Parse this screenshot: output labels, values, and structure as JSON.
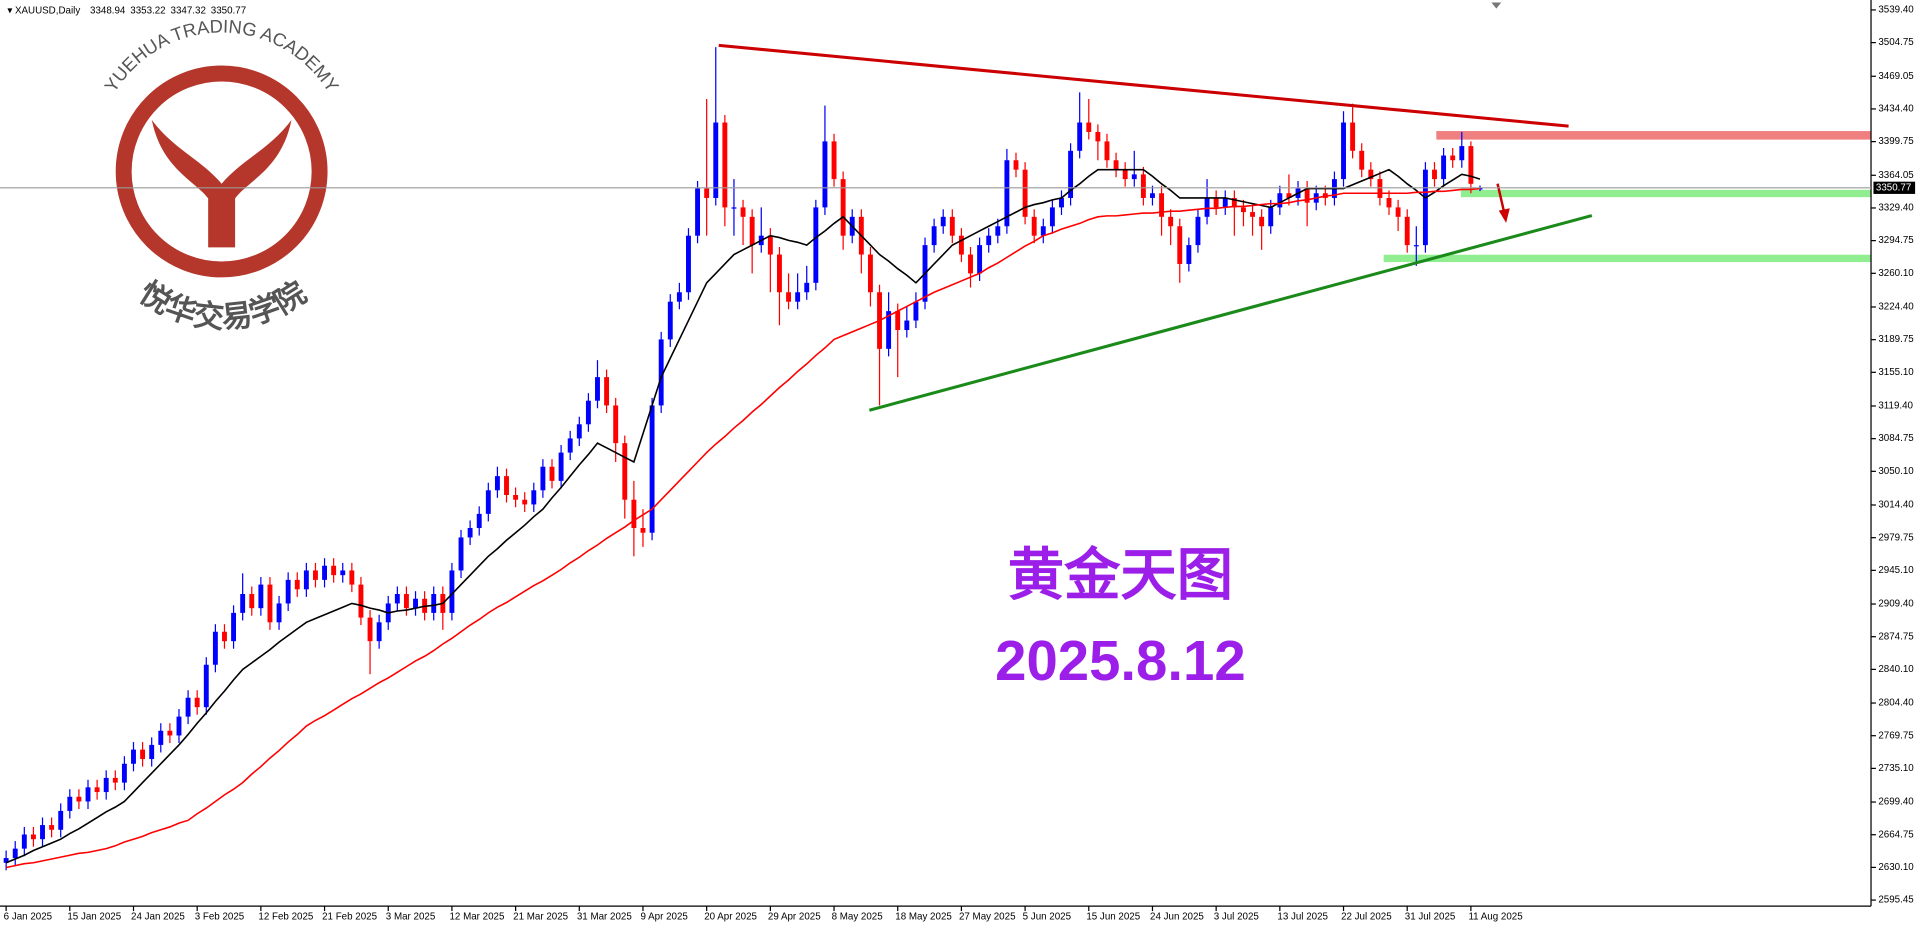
{
  "chart_data": {
    "type": "candlestick",
    "symbol": "XAUUSD,Daily",
    "title": "黄金天图",
    "subtitle": "2025.8.12",
    "watermark": {
      "text": "YUEHUA TRADING ACADEMY",
      "name": "悦华交易学院"
    },
    "up_color": "#0000ff",
    "down_color": "#ff0000",
    "categories": [
      "6 Jan 2025",
      null,
      null,
      null,
      null,
      null,
      null,
      "15 Jan 2025",
      null,
      null,
      null,
      null,
      null,
      null,
      "24 Jan 2025",
      null,
      null,
      null,
      null,
      null,
      null,
      "3 Feb 2025",
      null,
      null,
      null,
      null,
      null,
      null,
      "12 Feb 2025",
      null,
      null,
      null,
      null,
      null,
      null,
      "21 Feb 2025",
      null,
      null,
      null,
      null,
      null,
      null,
      "3 Mar 2025",
      null,
      null,
      null,
      null,
      null,
      null,
      "12 Mar 2025",
      null,
      null,
      null,
      null,
      null,
      null,
      "21 Mar 2025",
      null,
      null,
      null,
      null,
      null,
      null,
      "31 Mar 2025",
      null,
      null,
      null,
      null,
      null,
      null,
      "9 Apr 2025",
      null,
      null,
      null,
      null,
      null,
      null,
      "20 Apr 2025",
      null,
      null,
      null,
      null,
      null,
      null,
      "29 Apr 2025",
      null,
      null,
      null,
      null,
      null,
      null,
      "8 May 2025",
      null,
      null,
      null,
      null,
      null,
      null,
      "18 May 2025",
      null,
      null,
      null,
      null,
      null,
      null,
      "27 May 2025",
      null,
      null,
      null,
      null,
      null,
      null,
      "5 Jun 2025",
      null,
      null,
      null,
      null,
      null,
      null,
      "15 Jun 2025",
      null,
      null,
      null,
      null,
      null,
      null,
      "24 Jun 2025",
      null,
      null,
      null,
      null,
      null,
      null,
      "3 Jul 2025",
      null,
      null,
      null,
      null,
      null,
      null,
      "13 Jul 2025",
      null,
      null,
      null,
      null,
      null,
      null,
      "22 Jul 2025",
      null,
      null,
      null,
      null,
      null,
      null,
      "31 Jul 2025",
      null,
      null,
      null,
      null,
      null,
      null,
      "11 Aug 2025",
      null
    ],
    "open": [
      2635,
      2640,
      2650,
      2665,
      2660,
      2675,
      2670,
      2690,
      2705,
      2700,
      2715,
      2710,
      2725,
      2720,
      2740,
      2755,
      2745,
      2760,
      2775,
      2770,
      2790,
      2810,
      2800,
      2845,
      2880,
      2870,
      2900,
      2920,
      2905,
      2930,
      2890,
      2910,
      2935,
      2925,
      2945,
      2935,
      2950,
      2940,
      2945,
      2930,
      2895,
      2870,
      2890,
      2910,
      2920,
      2905,
      2915,
      2900,
      2920,
      2900,
      2945,
      2980,
      2990,
      3005,
      3030,
      3045,
      3025,
      3020,
      3015,
      3030,
      3055,
      3040,
      3070,
      3085,
      3100,
      3125,
      3150,
      3120,
      3080,
      3020,
      2990,
      2985,
      3120,
      3190,
      3230,
      3240,
      3300,
      3350,
      3340,
      3420,
      3330,
      3330,
      3320,
      3290,
      3300,
      3280,
      3240,
      3230,
      3240,
      3250,
      3330,
      3400,
      3360,
      3300,
      3320,
      3280,
      3240,
      3180,
      3220,
      3200,
      3210,
      3230,
      3290,
      3310,
      3320,
      3300,
      3280,
      3260,
      3290,
      3300,
      3310,
      3380,
      3370,
      3320,
      3300,
      3310,
      3330,
      3340,
      3390,
      3420,
      3410,
      3400,
      3380,
      3370,
      3360,
      3365,
      3340,
      3345,
      3320,
      3310,
      3270,
      3290,
      3320,
      3340,
      3330,
      3340,
      3330,
      3325,
      3320,
      3310,
      3330,
      3345,
      3340,
      3350,
      3335,
      3345,
      3340,
      3360,
      3420,
      3390,
      3370,
      3360,
      3340,
      3330,
      3320,
      3290,
      3290,
      3370,
      3360,
      3385,
      3380,
      3395,
      3348.94
    ],
    "high": [
      2648,
      2658,
      2673,
      2673,
      2683,
      2683,
      2698,
      2713,
      2713,
      2723,
      2723,
      2733,
      2733,
      2748,
      2763,
      2763,
      2768,
      2783,
      2783,
      2798,
      2818,
      2818,
      2853,
      2888,
      2888,
      2908,
      2942,
      2928,
      2938,
      2938,
      2918,
      2943,
      2943,
      2953,
      2953,
      2958,
      2958,
      2953,
      2953,
      2938,
      2903,
      2898,
      2918,
      2928,
      2928,
      2923,
      2923,
      2928,
      2928,
      2953,
      2988,
      2998,
      3013,
      3038,
      3055,
      3053,
      3033,
      3028,
      3038,
      3063,
      3063,
      3078,
      3093,
      3108,
      3133,
      3168,
      3158,
      3128,
      3088,
      3040,
      3010,
      3128,
      3198,
      3238,
      3250,
      3308,
      3358,
      3445,
      3500,
      3428,
      3360,
      3338,
      3328,
      3330,
      3308,
      3288,
      3260,
      3260,
      3268,
      3338,
      3438,
      3408,
      3368,
      3328,
      3328,
      3288,
      3248,
      3240,
      3228,
      3225,
      3240,
      3298,
      3318,
      3328,
      3328,
      3308,
      3288,
      3298,
      3308,
      3318,
      3392,
      3388,
      3378,
      3328,
      3318,
      3338,
      3348,
      3398,
      3452,
      3445,
      3418,
      3408,
      3388,
      3378,
      3390,
      3373,
      3353,
      3353,
      3328,
      3318,
      3298,
      3328,
      3360,
      3348,
      3348,
      3348,
      3338,
      3333,
      3328,
      3338,
      3353,
      3365,
      3358,
      3358,
      3353,
      3353,
      3368,
      3432,
      3440,
      3398,
      3378,
      3368,
      3348,
      3338,
      3328,
      3310,
      3378,
      3378,
      3393,
      3393,
      3410,
      3400,
      3353.22
    ],
    "low": [
      2627,
      2632,
      2642,
      2652,
      2652,
      2662,
      2662,
      2682,
      2692,
      2692,
      2702,
      2702,
      2712,
      2712,
      2732,
      2737,
      2737,
      2752,
      2762,
      2762,
      2782,
      2792,
      2792,
      2837,
      2862,
      2862,
      2892,
      2897,
      2897,
      2882,
      2882,
      2902,
      2917,
      2917,
      2927,
      2927,
      2932,
      2932,
      2922,
      2887,
      2835,
      2862,
      2882,
      2902,
      2897,
      2897,
      2892,
      2892,
      2882,
      2892,
      2937,
      2972,
      2982,
      2997,
      3022,
      3017,
      3012,
      3007,
      3007,
      3022,
      3032,
      3032,
      3062,
      3077,
      3092,
      3117,
      3112,
      3060,
      3000,
      2960,
      2970,
      2977,
      3112,
      3182,
      3222,
      3232,
      3292,
      3300,
      3332,
      3310,
      3300,
      3290,
      3260,
      3282,
      3240,
      3205,
      3222,
      3222,
      3232,
      3242,
      3322,
      3352,
      3285,
      3292,
      3260,
      3225,
      3120,
      3172,
      3150,
      3192,
      3202,
      3222,
      3282,
      3302,
      3292,
      3272,
      3245,
      3252,
      3282,
      3292,
      3302,
      3362,
      3312,
      3292,
      3292,
      3302,
      3322,
      3332,
      3382,
      3402,
      3380,
      3372,
      3362,
      3352,
      3352,
      3332,
      3332,
      3300,
      3290,
      3250,
      3262,
      3282,
      3312,
      3322,
      3322,
      3300,
      3310,
      3300,
      3285,
      3302,
      3322,
      3332,
      3332,
      3310,
      3327,
      3332,
      3332,
      3352,
      3382,
      3362,
      3352,
      3332,
      3322,
      3305,
      3282,
      3268,
      3282,
      3352,
      3352,
      3372,
      3372,
      3345,
      3347.32
    ],
    "close": [
      2640,
      2650,
      2665,
      2660,
      2675,
      2670,
      2690,
      2705,
      2700,
      2715,
      2710,
      2725,
      2720,
      2740,
      2755,
      2745,
      2760,
      2775,
      2770,
      2790,
      2810,
      2800,
      2845,
      2880,
      2870,
      2900,
      2920,
      2905,
      2930,
      2890,
      2910,
      2935,
      2925,
      2945,
      2935,
      2950,
      2940,
      2945,
      2930,
      2895,
      2870,
      2890,
      2910,
      2920,
      2905,
      2915,
      2900,
      2920,
      2900,
      2945,
      2980,
      2990,
      3005,
      3030,
      3045,
      3025,
      3020,
      3015,
      3030,
      3055,
      3040,
      3070,
      3085,
      3100,
      3125,
      3150,
      3120,
      3080,
      3020,
      2990,
      2985,
      3120,
      3190,
      3230,
      3240,
      3300,
      3350,
      3340,
      3420,
      3330,
      3330,
      3320,
      3290,
      3300,
      3280,
      3240,
      3230,
      3240,
      3250,
      3330,
      3400,
      3360,
      3300,
      3320,
      3280,
      3240,
      3180,
      3220,
      3200,
      3210,
      3230,
      3290,
      3310,
      3320,
      3300,
      3280,
      3260,
      3290,
      3300,
      3310,
      3380,
      3370,
      3320,
      3300,
      3310,
      3330,
      3340,
      3390,
      3420,
      3410,
      3400,
      3380,
      3370,
      3360,
      3365,
      3340,
      3345,
      3320,
      3310,
      3270,
      3290,
      3320,
      3340,
      3330,
      3340,
      3330,
      3325,
      3320,
      3310,
      3330,
      3345,
      3340,
      3350,
      3335,
      3345,
      3340,
      3360,
      3420,
      3390,
      3370,
      3360,
      3340,
      3330,
      3320,
      3290,
      3290,
      3370,
      3360,
      3385,
      3380,
      3395,
      3355,
      3350.77
    ],
    "series": [
      {
        "color": "#000000",
        "values": [
          2635,
          2639,
          2643,
          2648,
          2652,
          2656,
          2660,
          2666,
          2671,
          2677,
          2683,
          2689,
          2694,
          2700,
          2710,
          2720,
          2730,
          2740,
          2750,
          2760,
          2771,
          2783,
          2794,
          2806,
          2817,
          2829,
          2840,
          2847,
          2854,
          2861,
          2869,
          2876,
          2883,
          2890,
          2894,
          2898,
          2902,
          2906,
          2910,
          2908,
          2905,
          2903,
          2900,
          2902,
          2903,
          2905,
          2907,
          2908,
          2910,
          2920,
          2930,
          2940,
          2950,
          2960,
          2968,
          2977,
          2985,
          2993,
          3002,
          3010,
          3022,
          3033,
          3045,
          3057,
          3068,
          3080,
          3075,
          3070,
          3065,
          3060,
          3090,
          3120,
          3150,
          3170,
          3190,
          3210,
          3230,
          3250,
          3260,
          3270,
          3280,
          3285,
          3290,
          3295,
          3300,
          3298,
          3295,
          3293,
          3290,
          3298,
          3305,
          3313,
          3320,
          3310,
          3300,
          3290,
          3280,
          3273,
          3265,
          3258,
          3250,
          3260,
          3270,
          3280,
          3290,
          3295,
          3300,
          3305,
          3310,
          3315,
          3320,
          3325,
          3330,
          3333,
          3335,
          3338,
          3340,
          3348,
          3355,
          3363,
          3370,
          3370,
          3370,
          3370,
          3370,
          3370,
          3363,
          3355,
          3348,
          3340,
          3340,
          3340,
          3340,
          3340,
          3340,
          3338,
          3336,
          3334,
          3332,
          3330,
          3335,
          3340,
          3345,
          3350,
          3350,
          3350,
          3350,
          3350,
          3354,
          3358,
          3362,
          3366,
          3370,
          3363,
          3355,
          3348,
          3340,
          3346,
          3353,
          3359,
          3365,
          3363,
          3360
        ]
      },
      {
        "color": "#ff0000",
        "values": [
          2630,
          2632,
          2634,
          2635,
          2637,
          2639,
          2641,
          2643,
          2645,
          2646,
          2648,
          2650,
          2653,
          2657,
          2660,
          2663,
          2667,
          2670,
          2673,
          2677,
          2680,
          2687,
          2693,
          2700,
          2707,
          2713,
          2720,
          2729,
          2737,
          2746,
          2754,
          2763,
          2771,
          2780,
          2786,
          2791,
          2797,
          2803,
          2809,
          2814,
          2820,
          2826,
          2831,
          2837,
          2843,
          2849,
          2854,
          2860,
          2867,
          2873,
          2880,
          2887,
          2893,
          2900,
          2906,
          2911,
          2917,
          2923,
          2929,
          2934,
          2940,
          2946,
          2953,
          2959,
          2966,
          2972,
          2979,
          2985,
          2991,
          2998,
          3004,
          3010,
          3020,
          3030,
          3040,
          3050,
          3060,
          3070,
          3079,
          3087,
          3096,
          3104,
          3113,
          3121,
          3130,
          3139,
          3147,
          3156,
          3164,
          3173,
          3181,
          3190,
          3194,
          3198,
          3202,
          3206,
          3210,
          3215,
          3220,
          3225,
          3230,
          3235,
          3240,
          3244,
          3248,
          3252,
          3256,
          3260,
          3266,
          3271,
          3277,
          3283,
          3289,
          3294,
          3300,
          3303,
          3307,
          3310,
          3313,
          3317,
          3320,
          3321,
          3321,
          3322,
          3323,
          3324,
          3324,
          3325,
          3326,
          3326,
          3327,
          3328,
          3329,
          3329,
          3330,
          3331,
          3331,
          3332,
          3333,
          3334,
          3334,
          3335,
          3337,
          3338,
          3340,
          3342,
          3343,
          3345,
          3345,
          3345,
          3345,
          3345,
          3345,
          3345,
          3345,
          3346,
          3346,
          3347,
          3347,
          3348,
          3349,
          3349,
          3350
        ]
      }
    ],
    "ylim": [
      2589,
      3546
    ],
    "yticks": [
      {
        "value": 3539.4,
        "label": "3539.40"
      },
      3504.75,
      3469.05,
      {
        "value": 3434.4,
        "label": "3434.40"
      },
      3399.75,
      3364.05,
      {
        "value": 3329.4,
        "label": "3329.40"
      },
      3294.75,
      {
        "value": 3260.1,
        "label": "3260.10"
      },
      {
        "value": 3224.4,
        "label": "3224.40"
      },
      3189.75,
      {
        "value": 3155.1,
        "label": "3155.10"
      },
      {
        "value": 3119.4,
        "label": "3119.40"
      },
      3084.75,
      {
        "value": 3050.1,
        "label": "3050.10"
      },
      {
        "value": 3014.4,
        "label": "3014.40"
      },
      2979.75,
      {
        "value": 2945.1,
        "label": "2945.10"
      },
      {
        "value": 2909.4,
        "label": "2909.40"
      },
      2874.75,
      {
        "value": 2840.1,
        "label": "2840.10"
      },
      {
        "value": 2804.4,
        "label": "2804.40"
      },
      2769.75,
      {
        "value": 2735.1,
        "label": "2735.10"
      },
      {
        "value": 2699.4,
        "label": "2699.40"
      },
      2664.75,
      {
        "value": 2630.1,
        "label": "2630.10"
      },
      2595.45
    ]
  }
}
